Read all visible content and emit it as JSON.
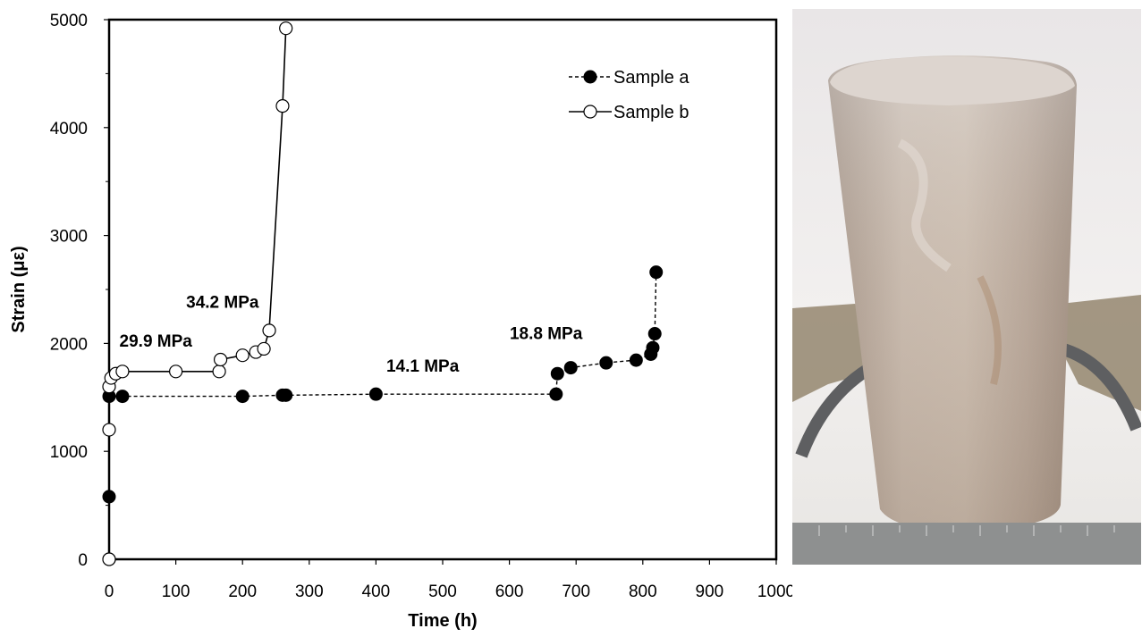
{
  "chart_data": {
    "type": "scatter",
    "xlabel": "Time (h)",
    "ylabel": "Strain  (με)",
    "xlim": [
      0,
      1000
    ],
    "ylim": [
      0,
      5000
    ],
    "x_ticks": [
      "0",
      "100",
      "200",
      "300",
      "400",
      "500",
      "600",
      "700",
      "800",
      "900",
      "1000"
    ],
    "y_ticks": [
      "0",
      "1000",
      "2000",
      "3000",
      "4000",
      "5000"
    ],
    "grid": false,
    "legend": "top-right",
    "series": [
      {
        "name": "Sample a",
        "marker": "filled-circle",
        "line": "dashed",
        "x": [
          0,
          0,
          0,
          20,
          200,
          260,
          265,
          400,
          670,
          672,
          692,
          745,
          790,
          812,
          815,
          818,
          820
        ],
        "y": [
          0,
          580,
          1510,
          1510,
          1510,
          1520,
          1520,
          1530,
          1530,
          1720,
          1775,
          1820,
          1845,
          1900,
          1960,
          2090,
          2660
        ]
      },
      {
        "name": "Sample b",
        "marker": "open-circle",
        "line": "solid",
        "x": [
          0,
          0,
          0,
          3,
          10,
          20,
          100,
          165,
          167,
          200,
          220,
          232,
          240,
          260,
          265
        ],
        "y": [
          0,
          1200,
          1600,
          1680,
          1720,
          1740,
          1740,
          1740,
          1850,
          1890,
          1920,
          1950,
          2120,
          4200,
          4920
        ]
      }
    ],
    "annotations": [
      {
        "text": "34.2 MPa",
        "x": 170,
        "y": 2330
      },
      {
        "text": "29.9 MPa",
        "x": 70,
        "y": 1970
      },
      {
        "text": "14.1 MPa",
        "x": 470,
        "y": 1740
      },
      {
        "text": "18.8 MPa",
        "x": 655,
        "y": 2040
      }
    ]
  },
  "photo": {
    "subject": "rock-salt-core-sample",
    "colors": {
      "background_top": "#e6e3e4",
      "core_body": "#bfb2a8",
      "core_highlight": "#d8d0c8",
      "base_plate": "#8f8066",
      "ruler": "#8e9090"
    }
  }
}
